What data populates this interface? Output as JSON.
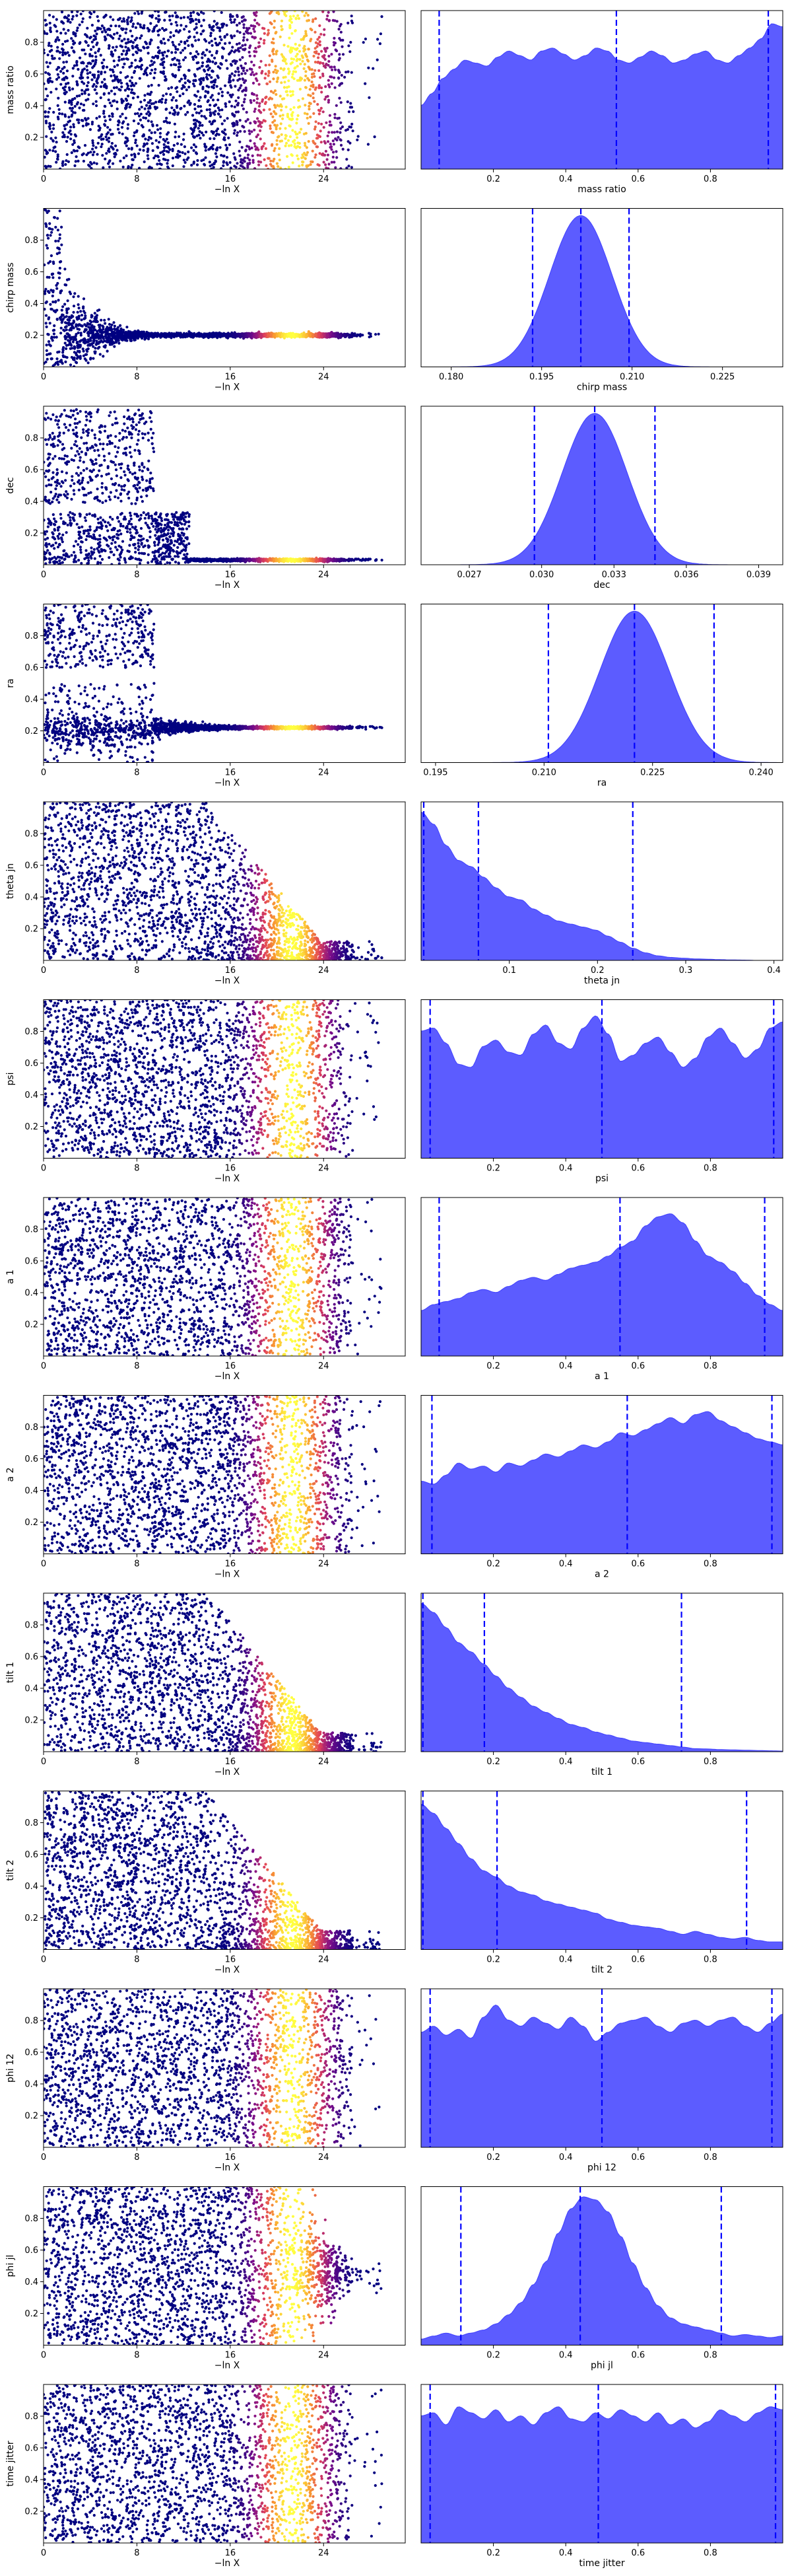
{
  "chart_data": {
    "type": "scatter",
    "description_free": true,
    "trace": {
      "xlabel": "−ln X",
      "xticks": [
        0,
        8,
        16,
        24
      ],
      "xlim": [
        0,
        31
      ],
      "ylim": [
        0,
        1
      ],
      "colormap": [
        "#000080",
        "#7a0d8a",
        "#e0405a",
        "#f99a30",
        "#ffff40"
      ],
      "point_color": "#000080"
    },
    "posterior": {
      "fill_color": "#4040ff",
      "line_color": "#0000ff",
      "type": "area"
    },
    "rows": [
      {
        "param": "mass ratio",
        "ylabel": "mass ratio",
        "xlabel": "mass ratio",
        "yticks": [
          0.2,
          0.4,
          0.6,
          0.8
        ],
        "pattern": "uniform",
        "pxlim": [
          0.0,
          1.0
        ],
        "pxticks": [
          0.2,
          0.4,
          0.6,
          0.8
        ],
        "pxtick_labels": [
          "0.2",
          "0.4",
          "0.6",
          "0.8"
        ],
        "quantiles": [
          0.05,
          0.54,
          0.96
        ],
        "density": [
          0.42,
          0.5,
          0.6,
          0.66,
          0.72,
          0.7,
          0.68,
          0.74,
          0.78,
          0.75,
          0.72,
          0.78,
          0.8,
          0.76,
          0.72,
          0.75,
          0.8,
          0.78,
          0.72,
          0.7,
          0.74,
          0.78,
          0.75,
          0.7,
          0.72,
          0.76,
          0.78,
          0.72,
          0.7,
          0.75,
          0.8,
          0.86,
          0.96,
          0.94
        ]
      },
      {
        "param": "chirp mass",
        "ylabel": "chirp mass",
        "xlabel": "chirp mass",
        "yticks": [
          0.2,
          0.4,
          0.6,
          0.8
        ],
        "pattern": "converge",
        "converge_center": 0.2,
        "pxlim": [
          0.175,
          0.235
        ],
        "pxticks": [
          0.18,
          0.195,
          0.21,
          0.225
        ],
        "pxtick_labels": [
          "0.180",
          "0.195",
          "0.210",
          "0.225"
        ],
        "quantiles": [
          0.1935,
          0.2015,
          0.2095
        ],
        "gaussian": {
          "mu": 0.2015,
          "sigma": 0.0052
        }
      },
      {
        "param": "dec",
        "ylabel": "dec",
        "xlabel": "dec",
        "yticks": [
          0.2,
          0.4,
          0.6,
          0.8
        ],
        "pattern": "blocky",
        "converge_center": 0.03,
        "pxlim": [
          0.025,
          0.04
        ],
        "pxticks": [
          0.027,
          0.03,
          0.033,
          0.036,
          0.039
        ],
        "pxtick_labels": [
          "0.027",
          "0.030",
          "0.033",
          "0.036",
          "0.039"
        ],
        "quantiles": [
          0.0297,
          0.0322,
          0.0347
        ],
        "gaussian": {
          "mu": 0.0322,
          "sigma": 0.00135
        }
      },
      {
        "param": "ra",
        "ylabel": "ra",
        "xlabel": "ra",
        "yticks": [
          0.2,
          0.4,
          0.6,
          0.8
        ],
        "pattern": "ra",
        "converge_center": 0.22,
        "pxlim": [
          0.193,
          0.243
        ],
        "pxticks": [
          0.195,
          0.21,
          0.225,
          0.24
        ],
        "pxtick_labels": [
          "0.195",
          "0.210",
          "0.225",
          "0.240"
        ],
        "quantiles": [
          0.2106,
          0.2225,
          0.2335
        ],
        "gaussian": {
          "mu": 0.2225,
          "sigma": 0.0048
        }
      },
      {
        "param": "theta jn",
        "ylabel": "theta jn",
        "xlabel": "theta jn",
        "yticks": [
          0.2,
          0.4,
          0.6,
          0.8
        ],
        "pattern": "decay",
        "pxlim": [
          0.0,
          0.41
        ],
        "pxticks": [
          0.1,
          0.2,
          0.3,
          0.4
        ],
        "pxtick_labels": [
          "0.1",
          "0.2",
          "0.3",
          "0.4"
        ],
        "quantiles": [
          0.003,
          0.065,
          0.24
        ],
        "density": [
          0.98,
          0.9,
          0.76,
          0.66,
          0.62,
          0.55,
          0.48,
          0.42,
          0.4,
          0.34,
          0.3,
          0.26,
          0.24,
          0.22,
          0.2,
          0.16,
          0.12,
          0.08,
          0.05,
          0.03,
          0.02,
          0.015,
          0.01,
          0.008,
          0.005,
          0.003,
          0.002,
          0.0,
          0.0,
          0.0
        ]
      },
      {
        "param": "psi",
        "ylabel": "psi",
        "xlabel": "psi",
        "yticks": [
          0.2,
          0.4,
          0.6,
          0.8
        ],
        "pattern": "uniform",
        "pxlim": [
          0.0,
          1.0
        ],
        "pxticks": [
          0.2,
          0.4,
          0.6,
          0.8
        ],
        "pxtick_labels": [
          "0.2",
          "0.4",
          "0.6",
          "0.8"
        ],
        "quantiles": [
          0.025,
          0.5,
          0.975
        ],
        "density": [
          0.84,
          0.86,
          0.76,
          0.62,
          0.6,
          0.74,
          0.78,
          0.7,
          0.68,
          0.82,
          0.88,
          0.76,
          0.72,
          0.86,
          0.94,
          0.82,
          0.64,
          0.68,
          0.76,
          0.8,
          0.7,
          0.6,
          0.66,
          0.8,
          0.86,
          0.76,
          0.66,
          0.72,
          0.86,
          0.9
        ]
      },
      {
        "param": "a 1",
        "ylabel": "a 1",
        "xlabel": "a 1",
        "yticks": [
          0.2,
          0.4,
          0.6,
          0.8
        ],
        "pattern": "uniform",
        "pxlim": [
          0.0,
          1.0
        ],
        "pxticks": [
          0.2,
          0.4,
          0.6,
          0.8
        ],
        "pxtick_labels": [
          "0.2",
          "0.4",
          "0.6",
          "0.8"
        ],
        "quantiles": [
          0.05,
          0.55,
          0.95
        ],
        "density": [
          0.3,
          0.34,
          0.36,
          0.38,
          0.42,
          0.44,
          0.42,
          0.46,
          0.5,
          0.52,
          0.5,
          0.54,
          0.58,
          0.6,
          0.62,
          0.66,
          0.72,
          0.76,
          0.86,
          0.92,
          0.94,
          0.88,
          0.76,
          0.66,
          0.62,
          0.56,
          0.48,
          0.4,
          0.34,
          0.3
        ]
      },
      {
        "param": "a 2",
        "ylabel": "a 2",
        "xlabel": "a 2",
        "yticks": [
          0.2,
          0.4,
          0.6,
          0.8
        ],
        "pattern": "uniform",
        "pxlim": [
          0.0,
          1.0
        ],
        "pxticks": [
          0.2,
          0.4,
          0.6,
          0.8
        ],
        "pxtick_labels": [
          "0.2",
          "0.4",
          "0.6",
          "0.8"
        ],
        "quantiles": [
          0.03,
          0.57,
          0.97
        ],
        "density": [
          0.48,
          0.46,
          0.52,
          0.6,
          0.56,
          0.58,
          0.54,
          0.6,
          0.58,
          0.62,
          0.66,
          0.64,
          0.68,
          0.72,
          0.7,
          0.74,
          0.8,
          0.78,
          0.82,
          0.86,
          0.9,
          0.86,
          0.92,
          0.94,
          0.88,
          0.84,
          0.8,
          0.76,
          0.74,
          0.72
        ]
      },
      {
        "param": "tilt 1",
        "ylabel": "tilt 1",
        "xlabel": "tilt 1",
        "yticks": [
          0.2,
          0.4,
          0.6,
          0.8
        ],
        "pattern": "decay",
        "pxlim": [
          0.0,
          1.0
        ],
        "pxticks": [
          0.2,
          0.4,
          0.6,
          0.8
        ],
        "pxtick_labels": [
          "0.2",
          "0.4",
          "0.6",
          "0.8"
        ],
        "quantiles": [
          0.005,
          0.175,
          0.72
        ],
        "density": [
          0.98,
          0.92,
          0.82,
          0.72,
          0.66,
          0.58,
          0.5,
          0.42,
          0.36,
          0.3,
          0.26,
          0.22,
          0.18,
          0.16,
          0.13,
          0.11,
          0.09,
          0.07,
          0.06,
          0.05,
          0.04,
          0.03,
          0.02,
          0.018,
          0.014,
          0.012,
          0.01,
          0.008,
          0.006,
          0.004
        ]
      },
      {
        "param": "tilt 2",
        "ylabel": "tilt 2",
        "xlabel": "tilt 2",
        "yticks": [
          0.2,
          0.4,
          0.6,
          0.8
        ],
        "pattern": "decay",
        "pxlim": [
          0.0,
          1.0
        ],
        "pxticks": [
          0.2,
          0.4,
          0.6,
          0.8
        ],
        "pxtick_labels": [
          "0.2",
          "0.4",
          "0.6",
          "0.8"
        ],
        "quantiles": [
          0.005,
          0.21,
          0.9
        ],
        "density": [
          0.96,
          0.9,
          0.8,
          0.7,
          0.6,
          0.52,
          0.48,
          0.42,
          0.38,
          0.36,
          0.32,
          0.3,
          0.28,
          0.26,
          0.24,
          0.2,
          0.18,
          0.16,
          0.15,
          0.14,
          0.12,
          0.1,
          0.12,
          0.1,
          0.08,
          0.07,
          0.08,
          0.06,
          0.05,
          0.05
        ]
      },
      {
        "param": "phi 12",
        "ylabel": "phi 12",
        "xlabel": "phi 12",
        "yticks": [
          0.2,
          0.4,
          0.6,
          0.8
        ],
        "pattern": "uniform",
        "pxlim": [
          0.0,
          1.0
        ],
        "pxticks": [
          0.2,
          0.4,
          0.6,
          0.8
        ],
        "pxtick_labels": [
          "0.2",
          "0.4",
          "0.6",
          "0.8"
        ],
        "quantiles": [
          0.025,
          0.5,
          0.97
        ],
        "density": [
          0.76,
          0.8,
          0.74,
          0.78,
          0.72,
          0.86,
          0.94,
          0.84,
          0.8,
          0.86,
          0.82,
          0.78,
          0.86,
          0.8,
          0.7,
          0.76,
          0.82,
          0.84,
          0.86,
          0.8,
          0.76,
          0.82,
          0.84,
          0.8,
          0.84,
          0.86,
          0.8,
          0.76,
          0.82,
          0.88
        ]
      },
      {
        "param": "phi jl",
        "ylabel": "phi jl",
        "xlabel": "phi jl",
        "yticks": [
          0.2,
          0.4,
          0.6,
          0.8
        ],
        "pattern": "uniform_peak",
        "pxlim": [
          0.0,
          1.0
        ],
        "pxticks": [
          0.2,
          0.4,
          0.6,
          0.8
        ],
        "pxtick_labels": [
          "0.2",
          "0.4",
          "0.6",
          "0.8"
        ],
        "quantiles": [
          0.11,
          0.44,
          0.83
        ],
        "density": [
          0.04,
          0.06,
          0.08,
          0.06,
          0.08,
          0.1,
          0.14,
          0.2,
          0.28,
          0.4,
          0.55,
          0.74,
          0.9,
          0.98,
          0.96,
          0.88,
          0.72,
          0.54,
          0.38,
          0.26,
          0.18,
          0.14,
          0.12,
          0.1,
          0.08,
          0.06,
          0.07,
          0.06,
          0.05,
          0.06
        ]
      },
      {
        "param": "time jitter",
        "ylabel": "time jitter",
        "xlabel": "time jitter",
        "yticks": [
          0.2,
          0.4,
          0.6,
          0.8
        ],
        "pattern": "uniform",
        "pxlim": [
          0.0,
          1.0
        ],
        "pxticks": [
          0.2,
          0.4,
          0.6,
          0.8
        ],
        "pxtick_labels": [
          "0.2",
          "0.4",
          "0.6",
          "0.8"
        ],
        "quantiles": [
          0.025,
          0.49,
          0.98
        ],
        "density": [
          0.84,
          0.86,
          0.78,
          0.9,
          0.86,
          0.82,
          0.88,
          0.8,
          0.84,
          0.78,
          0.86,
          0.9,
          0.82,
          0.8,
          0.86,
          0.82,
          0.88,
          0.84,
          0.8,
          0.86,
          0.78,
          0.82,
          0.76,
          0.8,
          0.88,
          0.84,
          0.8,
          0.86,
          0.9,
          0.88
        ]
      }
    ]
  }
}
